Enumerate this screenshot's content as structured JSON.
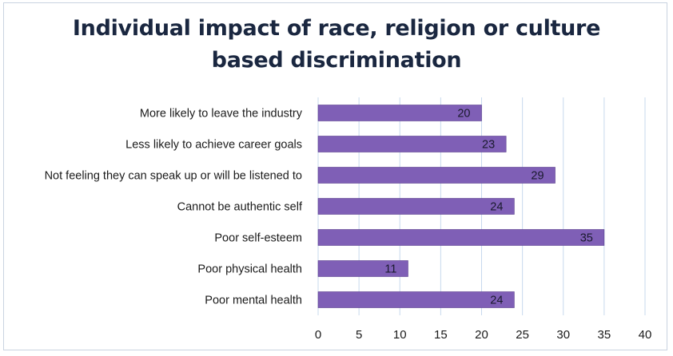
{
  "chart_data": {
    "type": "bar",
    "orientation": "horizontal",
    "title_lines": [
      "Individual impact of race, religion or culture",
      "based discrimination"
    ],
    "categories": [
      "More likely to leave the industry",
      "Less likely to achieve career goals",
      "Not feeling they can speak up or will be listened to",
      "Cannot be authentic self",
      "Poor self-esteem",
      "Poor physical health",
      "Poor mental health"
    ],
    "values": [
      20,
      23,
      29,
      24,
      35,
      11,
      24
    ],
    "xlim": [
      0,
      40
    ],
    "xticks": [
      0,
      5,
      10,
      15,
      20,
      25,
      30,
      35,
      40
    ],
    "xlabel": "",
    "ylabel": "",
    "grid": "vertical",
    "legend": "none",
    "colors": {
      "bar": "#7f5fb6",
      "bar_edge": "#5a3e8c",
      "grid": "#c7d9ee",
      "label": "#1a1a1a",
      "title": "#1a2740"
    }
  }
}
